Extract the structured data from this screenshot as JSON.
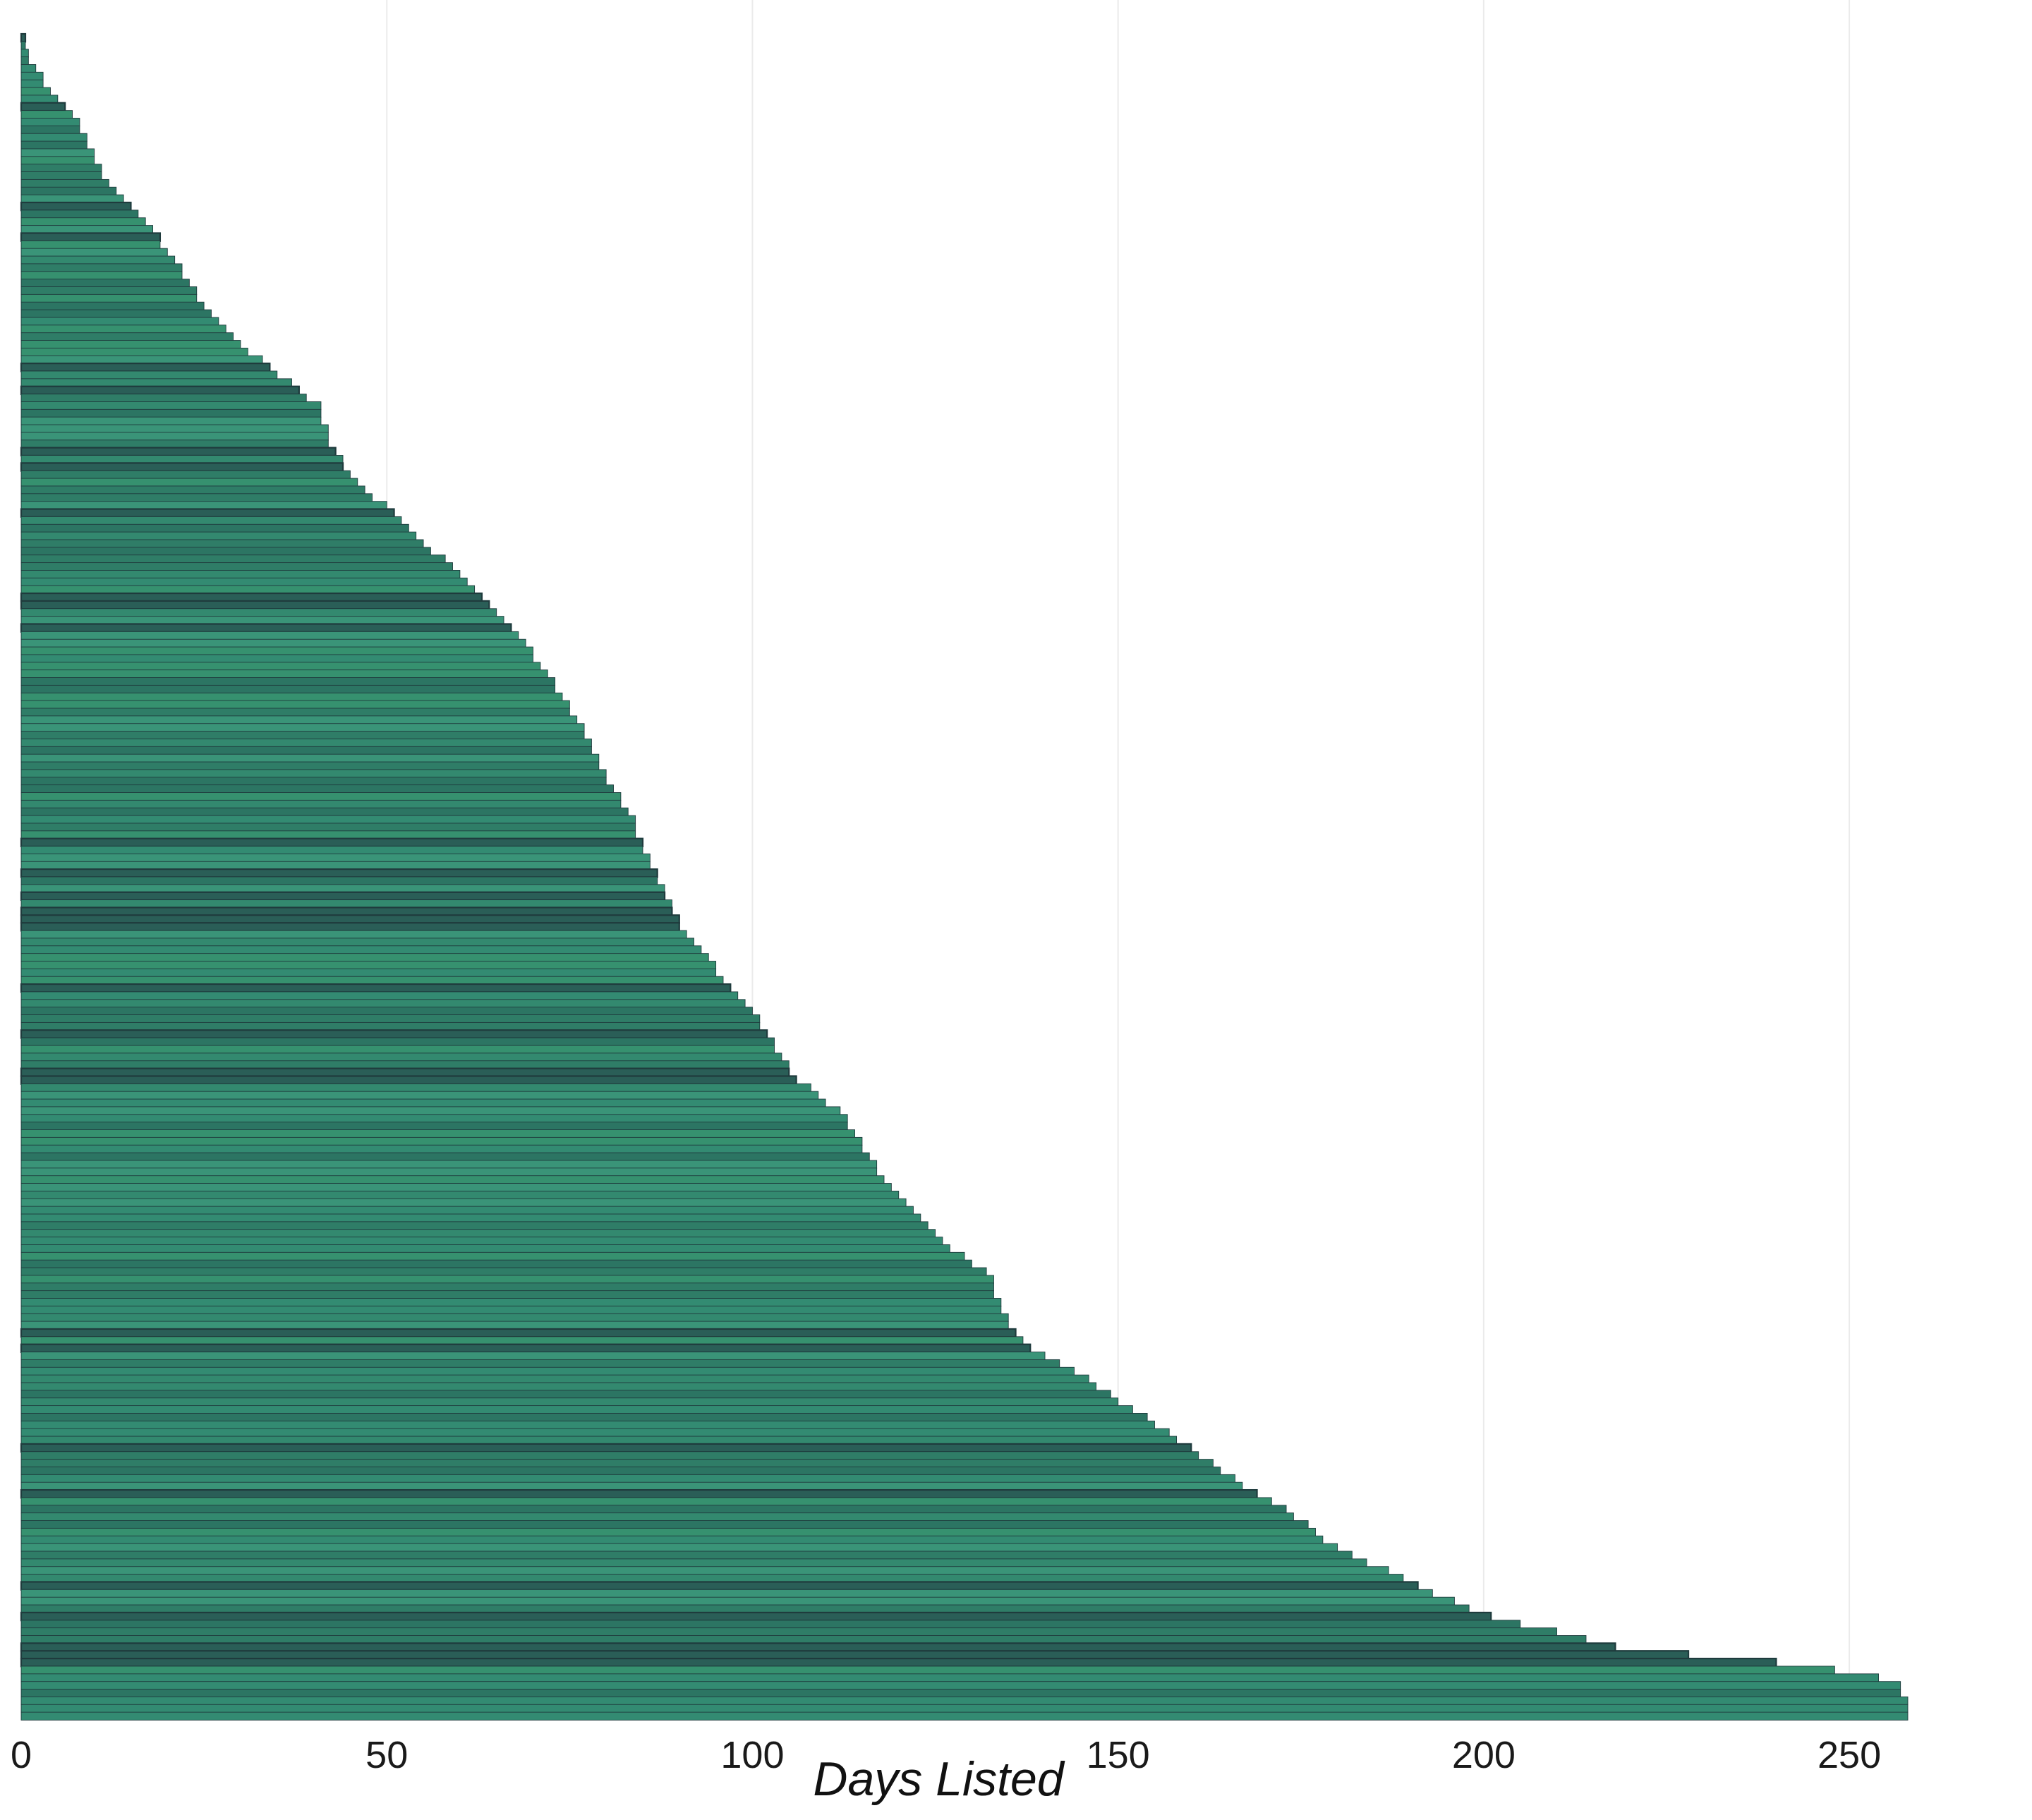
{
  "chart_data": {
    "type": "bar",
    "orientation": "horizontal",
    "title": "",
    "xlabel": "Days Listed",
    "ylabel": "",
    "xlim": [
      0,
      258
    ],
    "xticks": [
      0,
      50,
      100,
      150,
      200,
      250
    ],
    "xtick_labels": [
      "0",
      "50",
      "100",
      "150",
      "200",
      "250"
    ],
    "grid": "vertical lines only",
    "legend": "none",
    "bar_count": 220,
    "colors": {
      "bar_fill": "#33896f",
      "bar_outline": "#1f3b3d",
      "background": "#ffffff",
      "grid": "#ebebeb"
    },
    "profile_note": "bars sorted ascending by Days Listed from top to bottom",
    "profile_points": [
      [
        0,
        0
      ],
      [
        0.02,
        2
      ],
      [
        0.04,
        6
      ],
      [
        0.06,
        9
      ],
      [
        0.08,
        11
      ],
      [
        0.1,
        15
      ],
      [
        0.12,
        19
      ],
      [
        0.14,
        22
      ],
      [
        0.16,
        25
      ],
      [
        0.18,
        29
      ],
      [
        0.2,
        35
      ],
      [
        0.22,
        41
      ],
      [
        0.24,
        42
      ],
      [
        0.26,
        45
      ],
      [
        0.28,
        50
      ],
      [
        0.3,
        55
      ],
      [
        0.32,
        60
      ],
      [
        0.34,
        64
      ],
      [
        0.36,
        69
      ],
      [
        0.38,
        72
      ],
      [
        0.4,
        75
      ],
      [
        0.42,
        78
      ],
      [
        0.44,
        80
      ],
      [
        0.46,
        83
      ],
      [
        0.48,
        85
      ],
      [
        0.5,
        87
      ],
      [
        0.52,
        89
      ],
      [
        0.54,
        92
      ],
      [
        0.56,
        96
      ],
      [
        0.58,
        100
      ],
      [
        0.6,
        103
      ],
      [
        0.62,
        106
      ],
      [
        0.64,
        112
      ],
      [
        0.66,
        115
      ],
      [
        0.68,
        118
      ],
      [
        0.7,
        122
      ],
      [
        0.72,
        127
      ],
      [
        0.74,
        133
      ],
      [
        0.76,
        134
      ],
      [
        0.78,
        138
      ],
      [
        0.8,
        146
      ],
      [
        0.82,
        153
      ],
      [
        0.84,
        160
      ],
      [
        0.86,
        166
      ],
      [
        0.88,
        174
      ],
      [
        0.9,
        180
      ],
      [
        0.92,
        190
      ],
      [
        0.94,
        200
      ],
      [
        0.95,
        210
      ],
      [
        0.96,
        219
      ],
      [
        0.97,
        245
      ],
      [
        0.98,
        257
      ],
      [
        1.0,
        258
      ]
    ]
  }
}
